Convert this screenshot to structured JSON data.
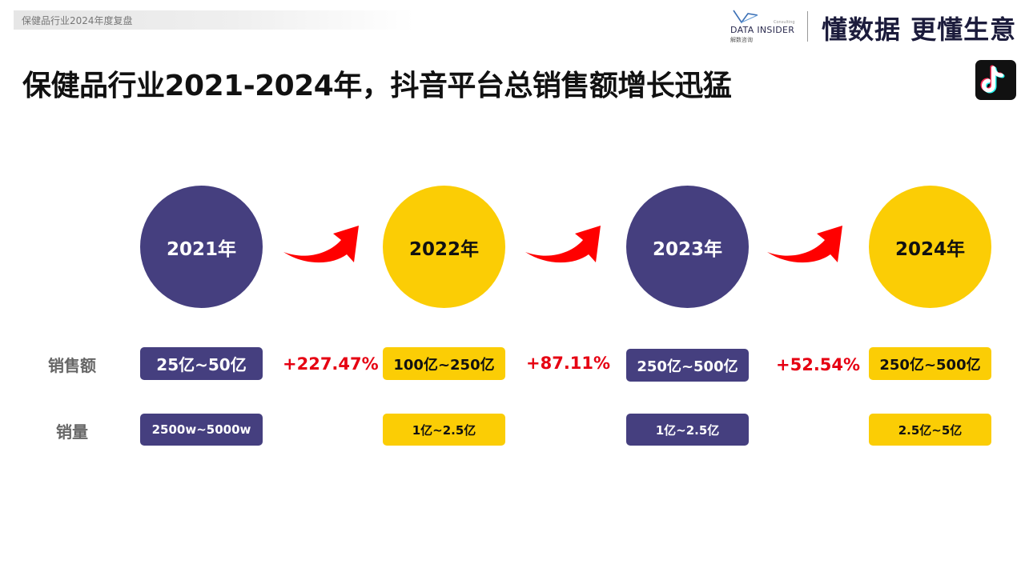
{
  "header": {
    "section_label": "保健品行业2024年度复盘",
    "logo_text": "DATA INSIDER",
    "logo_subtext": "解数咨询",
    "logo_consulting": "Consulting",
    "slogan": "懂数据 更懂生意"
  },
  "title": "保健品行业2021-2024年，抖音平台总销售额增长迅猛",
  "platform_icon": "douyin-tiktok-icon",
  "colors": {
    "purple": "#453f7f",
    "yellow": "#fbcd05",
    "growth_red": "#e60012",
    "arrow_red": "#ff0000"
  },
  "row_labels": {
    "sales_amount": "销售额",
    "sales_volume": "销量"
  },
  "years": [
    {
      "label": "2021年",
      "sales_amount": "25亿~50亿",
      "sales_volume": "2500w~5000w"
    },
    {
      "label": "2022年",
      "sales_amount": "100亿~250亿",
      "sales_volume": "1亿~2.5亿"
    },
    {
      "label": "2023年",
      "sales_amount": "250亿~500亿",
      "sales_volume": "1亿~2.5亿"
    },
    {
      "label": "2024年",
      "sales_amount": "250亿~500亿",
      "sales_volume": "2.5亿~5亿"
    }
  ],
  "growth": [
    "+227.47%",
    "+87.11%",
    "+52.54%"
  ]
}
